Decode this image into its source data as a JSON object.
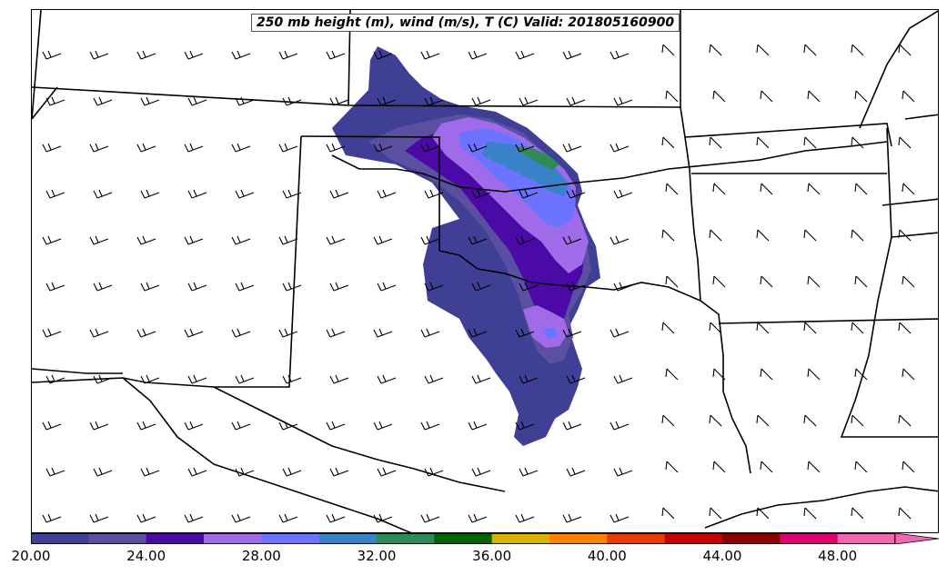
{
  "title": "250 mb height (m), wind (m/s), T (C) Valid: 201805160900",
  "colorbar": {
    "labels": [
      "20.00",
      "24.00",
      "28.00",
      "32.00",
      "36.00",
      "40.00",
      "44.00",
      "48.00"
    ],
    "colors": [
      "#3f3f96",
      "#5a4fa0",
      "#4b0aa8",
      "#9f6be8",
      "#6b73ff",
      "#3a82c8",
      "#2e8b57",
      "#006400",
      "#d8b400",
      "#ff8200",
      "#e63c00",
      "#c80000",
      "#8b0000",
      "#e0006e",
      "#f066b0"
    ],
    "extend": "max"
  }
}
